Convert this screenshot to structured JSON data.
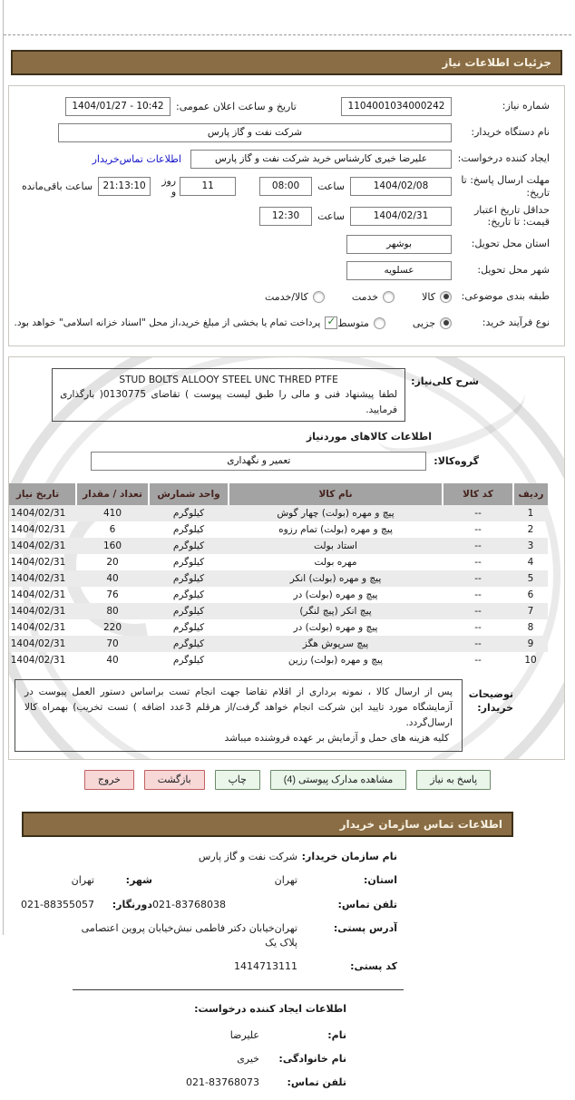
{
  "header": {
    "title": "جزئیات اطلاعات نیاز"
  },
  "form": {
    "need_number": {
      "label": "شماره نیاز:",
      "value": "1104001034000242"
    },
    "announce_datetime": {
      "label": "تاریخ و ساعت اعلان عمومی:",
      "value": "1404/01/27 - 10:42"
    },
    "buyer_org": {
      "label": "نام دستگاه خریدار:",
      "value": "شرکت نفت و گاز پارس"
    },
    "request_creator": {
      "label": "ایجاد کننده درخواست:",
      "value": "علیرضا خیری کارشناس خرید شرکت نفت و گاز پارس",
      "contact_link": "اطلاعات تماس‌خریدار"
    },
    "reply_deadline": {
      "label": "مهلت ارسال پاسخ: تا تاریخ:",
      "date": "1404/02/08",
      "hour_label": "ساعت",
      "time": "08:00",
      "days": "11",
      "days_label": "روز و",
      "remaining": "21:13:10",
      "remaining_label": "ساعت باقی‌مانده"
    },
    "price_validity": {
      "label": "حداقل تاریخ اعتبار قیمت: تا تاریخ:",
      "date": "1404/02/31",
      "hour_label": "ساعت",
      "time": "12:30"
    },
    "delivery_province": {
      "label": "استان محل تحویل:",
      "value": "بوشهر"
    },
    "delivery_city": {
      "label": "شهر محل تحویل:",
      "value": "عسلویه"
    },
    "subject_class": {
      "label": "طبقه بندی موضوعی:",
      "options": [
        {
          "label": "کالا",
          "selected": true
        },
        {
          "label": "خدمت",
          "selected": false
        },
        {
          "label": "کالا/خدمت",
          "selected": false
        }
      ]
    },
    "purchase_process": {
      "label": "نوع فرآیند خرید:",
      "options": [
        {
          "label": "جزیی",
          "selected": true
        },
        {
          "label": "متوسط",
          "selected": false
        }
      ],
      "treasury_checkbox": {
        "checked": true,
        "label": "پرداخت تمام یا بخشی از مبلغ خرید،از محل \"اسناد خزانه اسلامی\" خواهد بود."
      }
    }
  },
  "need_desc": {
    "label": "شرح کلی‌نیاز:",
    "line_en": "STUD BOLTS ALLOOY STEEL UNC THRED PTFE",
    "line_fa": "لطفا پیشنهاد فنی و مالی را طبق لیست پیوست ) تقاضای 0130775( بارگذاری فرمایید."
  },
  "items_section": {
    "heading": "اطلاعات کالاهای موردنیاز",
    "group": {
      "label": "گروه‌کالا:",
      "value": "تعمیر و نگهداری"
    },
    "table": {
      "headers": {
        "no": "ردیف",
        "code": "کد کالا",
        "name": "نام کالا",
        "unit": "واحد شمارش",
        "qty": "تعداد / مقدار",
        "date": "تاریخ نیاز"
      },
      "rows": [
        {
          "no": "1",
          "code": "--",
          "name": "پیچ و مهره (بولت) چهار گوش",
          "unit": "کیلوگرم",
          "qty": "410",
          "date": "1404/02/31"
        },
        {
          "no": "2",
          "code": "--",
          "name": "پیچ و مهره (بولت) تمام رزوه",
          "unit": "کیلوگرم",
          "qty": "6",
          "date": "1404/02/31"
        },
        {
          "no": "3",
          "code": "--",
          "name": "استاد بولت",
          "unit": "کیلوگرم",
          "qty": "160",
          "date": "1404/02/31"
        },
        {
          "no": "4",
          "code": "--",
          "name": "مهره بولت",
          "unit": "کیلوگرم",
          "qty": "20",
          "date": "1404/02/31"
        },
        {
          "no": "5",
          "code": "--",
          "name": "پیچ و مهره (بولت) انکر",
          "unit": "کیلوگرم",
          "qty": "40",
          "date": "1404/02/31"
        },
        {
          "no": "6",
          "code": "--",
          "name": "پیچ و مهره (بولت) در",
          "unit": "کیلوگرم",
          "qty": "76",
          "date": "1404/02/31"
        },
        {
          "no": "7",
          "code": "--",
          "name": "پیچ انکر (پیچ لنگر)",
          "unit": "کیلوگرم",
          "qty": "80",
          "date": "1404/02/31"
        },
        {
          "no": "8",
          "code": "--",
          "name": "پیچ و مهره (بولت) در",
          "unit": "کیلوگرم",
          "qty": "220",
          "date": "1404/02/31"
        },
        {
          "no": "9",
          "code": "--",
          "name": "پیچ سرپوش هگز",
          "unit": "کیلوگرم",
          "qty": "70",
          "date": "1404/02/31"
        },
        {
          "no": "10",
          "code": "--",
          "name": "پیچ و مهره (بولت) رزین",
          "unit": "کیلوگرم",
          "qty": "40",
          "date": "1404/02/31"
        }
      ]
    },
    "buyer_notes": {
      "label": "توضیحات خریدار:",
      "p1": "پس از ارسال کالا ، نمونه برداری از اقلام تقاضا جهت انجام تست براساس دستور العمل پیوست در آزمایشگاه مورد تایید این شرکت انجام خواهد گرفت/از هرقلم 3عدد اضافه ) تست تخریب) بهمراه کالا ارسال‌گردد.",
      "p2": "کلیه هزینه های حمل و آزمایش بر عهده فروشنده میباشد"
    }
  },
  "buttons": [
    {
      "label": "پاسخ به نیاز",
      "type": "green"
    },
    {
      "label": "مشاهده مدارک پیوستی (4)",
      "type": "green"
    },
    {
      "label": "چاپ",
      "type": "green"
    },
    {
      "label": "بازگشت",
      "type": "pink"
    },
    {
      "label": "خروج",
      "type": "pink"
    }
  ],
  "contact": {
    "header": "اطلاعات تماس سازمان خریدار",
    "org_name": {
      "label": "نام سازمان خریدار:",
      "value": "شرکت نفت و گاز پارس"
    },
    "province": {
      "label": "استان:",
      "value": "تهران"
    },
    "city": {
      "label": "شهر:",
      "value": "تهران"
    },
    "phone": {
      "label": "تلفن تماس:",
      "value": "021-83768038"
    },
    "fax": {
      "label": "دورنگار:",
      "value": "021-88355057"
    },
    "address": {
      "label": "آدرس پستی:",
      "value": "تهران‌خیابان دکتر فاطمی نبش‌خیابان پروین اعتصامی پلاک یک"
    },
    "postal_code": {
      "label": "کد پستی:",
      "value": "1414713111"
    }
  },
  "creator": {
    "heading": "اطلاعات ایجاد کننده درخواست:",
    "first_name": {
      "label": "نام:",
      "value": "علیرضا"
    },
    "last_name": {
      "label": "نام خانوادگی:",
      "value": "خیری"
    },
    "phone": {
      "label": "تلفن تماس:",
      "value": "021-83768073"
    }
  }
}
